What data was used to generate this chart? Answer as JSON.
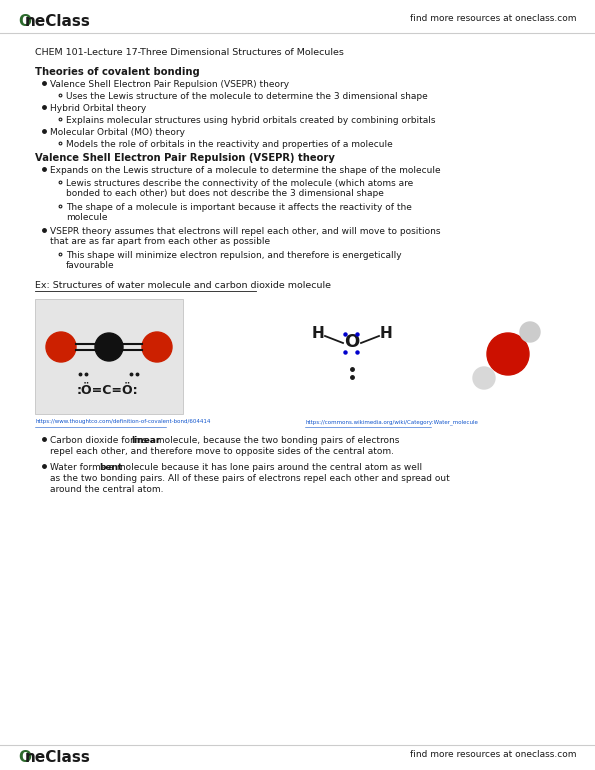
{
  "page_width": 5.95,
  "page_height": 7.7,
  "bg_color": "#ffffff",
  "header_logo_color": "#2d6a2d",
  "header_right": "find more resources at oneclass.com",
  "doc_title": "CHEM 101-Lecture 17-Three Dimensional Structures of Molecules",
  "section1_title": "Theories of covalent bonding",
  "section1_bullets": [
    {
      "level": 1,
      "text": "Valence Shell Electron Pair Repulsion (VSEPR) theory"
    },
    {
      "level": 2,
      "text": "Uses the Lewis structure of the molecule to determine the 3 dimensional shape"
    },
    {
      "level": 1,
      "text": "Hybrid Orbital theory"
    },
    {
      "level": 2,
      "text": "Explains molecular structures using hybrid orbitals created by combining orbitals"
    },
    {
      "level": 1,
      "text": "Molecular Orbital (MO) theory"
    },
    {
      "level": 2,
      "text": "Models the role of orbitals in the reactivity and properties of a molecule"
    }
  ],
  "section2_title": "Valence Shell Electron Pair Repulsion (VSEPR) theory",
  "section2_bullets": [
    {
      "level": 1,
      "text": "Expands on the Lewis structure of a molecule to determine the shape of the molecule"
    },
    {
      "level": 2,
      "text": "Lewis structures describe the connectivity of the molecule (which atoms are\nbonded to each other) but does not describe the 3 dimensional shape"
    },
    {
      "level": 2,
      "text": "The shape of a molecule is important because it affects the reactivity of the\nmolecule"
    },
    {
      "level": 1,
      "text": "VSEPR theory assumes that electrons will repel each other, and will move to positions\nthat are as far apart from each other as possible"
    },
    {
      "level": 2,
      "text": "This shape will minimize electron repulsion, and therefore is energetically\nfavourable"
    }
  ],
  "example_label": "Ex: Structures of water molecule and carbon dioxide molecule",
  "link1": "https://www.thoughtco.com/definition-of-covalent-bond/604414",
  "link2": "https://commons.wikimedia.org/wiki/Category:Water_molecule",
  "section3_bullets": [
    {
      "level": 1,
      "bold_part": "linear",
      "text_before": "Carbon dioxide forms a ",
      "text_after": " molecule, because the two bonding pairs of electrons\nrepel each other, and therefore move to opposite sides of the central atom."
    },
    {
      "level": 1,
      "bold_part": "bent",
      "text_before": "Water forms a ",
      "text_after": " molecule because it has lone pairs around the central atom as well\nas the two bonding pairs. All of these pairs of electrons repel each other and spread out\naround the central atom."
    }
  ],
  "footer_right": "find more resources at oneclass.com",
  "footer_logo_color": "#2d6a2d"
}
